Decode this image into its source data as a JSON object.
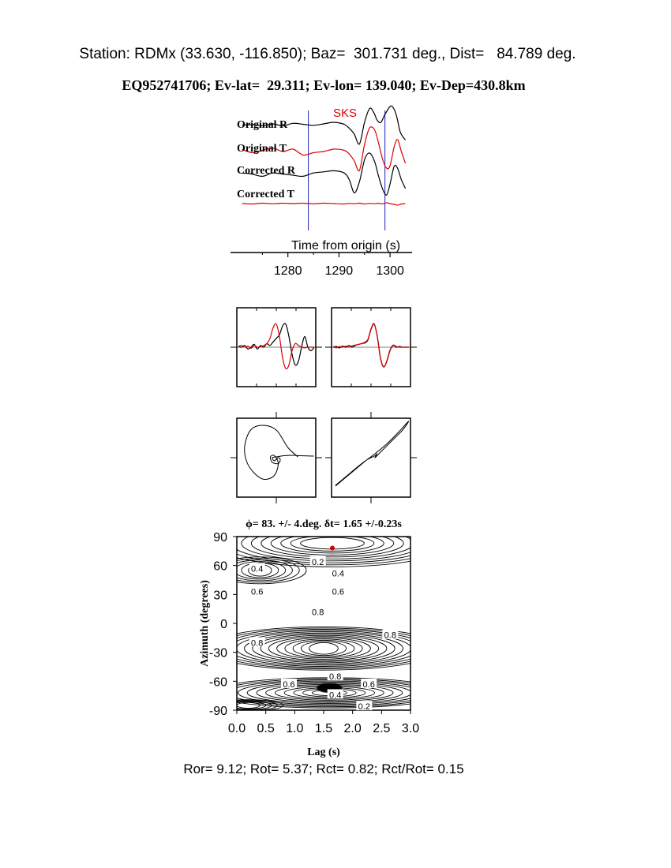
{
  "header": {
    "station_line": "Station: RDMx (33.630, -116.850); Baz=  301.731 deg., Dist=   84.789 deg.",
    "event_line": "EQ952741706; Ev-lat=  29.311; Ev-lon= 139.040; Ev-Dep=430.8km"
  },
  "footer": {
    "ratio_line": "Ror= 9.12; Rot= 5.37; Rct= 0.82; Rct/Rot= 0.15"
  },
  "colors": {
    "original": "#000000",
    "corrected": "#dd0000",
    "marker": "#2020c0",
    "phase_label": "#dd0000"
  },
  "chart_data": [
    {
      "type": "line",
      "panel": "seismograms",
      "phase_label": "SKS",
      "xlabel": "Time from origin (s)",
      "x_ticks": [
        "1280",
        "1290",
        "1300"
      ],
      "x_tick_values": [
        1280,
        1290,
        1300
      ],
      "xlim": [
        1270,
        1304
      ],
      "window_markers": [
        1284,
        1299
      ],
      "trace_labels": [
        "Original R",
        "Original T",
        "Corrected R",
        "Corrected T"
      ],
      "series": [
        {
          "name": "Original R",
          "color": "#000000",
          "t": [
            1271,
            1273,
            1275,
            1277,
            1279,
            1281,
            1283,
            1285,
            1287,
            1289,
            1291,
            1292,
            1293,
            1294,
            1295,
            1296,
            1296.8,
            1297.5,
            1298.2,
            1299,
            1300,
            1300.6,
            1301.3,
            1302,
            1303
          ],
          "v": [
            0.05,
            0.08,
            0.03,
            0.12,
            0.02,
            0.15,
            0.1,
            0.05,
            0.12,
            0.2,
            0.1,
            -0.1,
            -0.4,
            -0.9,
            0.2,
            0.9,
            0.7,
            0.3,
            0.2,
            0.6,
            1.0,
            0.95,
            0.5,
            -0.3,
            -0.7
          ]
        },
        {
          "name": "Original T",
          "color": "#dd0000",
          "t": [
            1271,
            1273,
            1275,
            1277,
            1279,
            1281,
            1283,
            1285,
            1287,
            1289,
            1291,
            1292,
            1293,
            1294,
            1295,
            1296,
            1297,
            1297.7,
            1298.5,
            1299.3,
            1300,
            1300.8,
            1301.5,
            1302.2,
            1303
          ],
          "v": [
            0.1,
            -0.05,
            0.05,
            0.15,
            0.0,
            0.1,
            -0.15,
            -0.05,
            0.0,
            0.1,
            0.05,
            -0.1,
            -0.4,
            -0.8,
            0.3,
            1.0,
            0.9,
            0.4,
            -0.3,
            -0.7,
            -0.6,
            0.2,
            0.5,
            0.0,
            -0.5
          ]
        },
        {
          "name": "Corrected R",
          "color": "#000000",
          "t": [
            1271,
            1273,
            1275,
            1277,
            1279,
            1281,
            1283,
            1285,
            1287,
            1289,
            1291,
            1292,
            1293,
            1294,
            1295,
            1296,
            1297,
            1297.7,
            1298.5,
            1299.3,
            1300,
            1300.8,
            1301.5,
            1302.2,
            1303
          ],
          "v": [
            0.1,
            0.05,
            -0.05,
            0.1,
            0.05,
            0.0,
            -0.05,
            0.1,
            0.15,
            0.2,
            0.1,
            -0.2,
            -0.8,
            -0.3,
            0.7,
            1.0,
            0.6,
            0.0,
            -0.6,
            -0.9,
            -0.4,
            0.4,
            0.3,
            -0.2,
            -0.6
          ]
        },
        {
          "name": "Corrected T",
          "color": "#dd0000",
          "t": [
            1271,
            1273,
            1275,
            1277,
            1279,
            1281,
            1283,
            1285,
            1287,
            1289,
            1291,
            1292,
            1293,
            1294,
            1295,
            1296,
            1297,
            1297.7,
            1298.5,
            1299.3,
            1300,
            1300.8,
            1301.5,
            1302.2,
            1303
          ],
          "v": [
            0.02,
            -0.05,
            0.05,
            -0.02,
            0.05,
            0.0,
            0.05,
            -0.03,
            0.05,
            0.0,
            -0.05,
            0.03,
            -0.02,
            0.05,
            -0.05,
            0.03,
            -0.02,
            0.05,
            -0.03,
            0.1,
            0.0,
            -0.1,
            -0.2,
            -0.05,
            0.0
          ]
        }
      ]
    },
    {
      "type": "line",
      "panel": "waveform-comparison-original",
      "series": [
        {
          "name": "",
          "color": "#000000",
          "v": [
            0.02,
            0.0,
            0.05,
            -0.05,
            0.0,
            0.08,
            -0.05,
            0.05,
            0.0,
            0.1,
            0.05,
            0.15,
            0.25,
            0.35,
            0.6,
            0.65,
            0.3,
            -0.2,
            -0.5,
            -0.4,
            0.0,
            0.3,
            0.0,
            -0.1,
            0.0
          ]
        },
        {
          "name": "",
          "color": "#dd0000",
          "v": [
            0.02,
            0.05,
            0.0,
            0.03,
            -0.03,
            0.05,
            0.0,
            0.02,
            0.05,
            0.1,
            0.25,
            0.55,
            0.65,
            0.3,
            -0.3,
            -0.6,
            -0.5,
            -0.1,
            0.1,
            0.05,
            0.0,
            -0.02,
            0.0,
            0.0,
            0.0
          ]
        }
      ]
    },
    {
      "type": "line",
      "panel": "waveform-comparison-corrected",
      "series": [
        {
          "name": "",
          "color": "#000000",
          "v": [
            0.0,
            0.02,
            -0.02,
            0.03,
            0.0,
            0.05,
            0.0,
            0.05,
            0.08,
            0.1,
            0.12,
            0.2,
            0.5,
            0.65,
            0.3,
            -0.3,
            -0.55,
            -0.4,
            -0.1,
            0.05,
            0.0,
            0.02,
            0.0,
            0.0,
            0.0
          ]
        },
        {
          "name": "",
          "color": "#dd0000",
          "v": [
            0.02,
            -0.02,
            0.02,
            0.0,
            0.03,
            0.0,
            0.04,
            0.06,
            0.08,
            0.1,
            0.14,
            0.22,
            0.52,
            0.66,
            0.28,
            -0.32,
            -0.56,
            -0.38,
            -0.08,
            0.06,
            0.02,
            0.0,
            0.0,
            0.0,
            0.0
          ]
        }
      ]
    },
    {
      "type": "scatter",
      "panel": "particle-motion-original",
      "series": [
        {
          "name": "",
          "color": "#000000",
          "x": [
            0.55,
            0.3,
            0.0,
            -0.35,
            -0.65,
            -0.8,
            -0.75,
            -0.55,
            -0.3,
            -0.05,
            0.05,
            -0.05,
            -0.15,
            -0.1,
            0.05,
            0.1,
            0.05,
            -0.05,
            -0.1,
            0.0,
            0.2,
            0.45,
            0.6,
            0.95
          ],
          "y": [
            0.02,
            0.25,
            0.7,
            0.82,
            0.7,
            0.3,
            -0.1,
            -0.4,
            -0.55,
            -0.45,
            -0.15,
            0.05,
            0.02,
            -0.12,
            -0.15,
            -0.05,
            0.0,
            -0.08,
            0.0,
            0.02,
            0.05,
            0.06,
            0.05,
            0.04
          ]
        }
      ]
    },
    {
      "type": "scatter",
      "panel": "particle-motion-corrected",
      "series": [
        {
          "name": "",
          "color": "#000000",
          "x": [
            -0.9,
            -0.6,
            -0.3,
            -0.1,
            0.1,
            0.15,
            0.1,
            0.2,
            0.4,
            0.6,
            0.8,
            0.95,
            0.7,
            0.4,
            0.1,
            -0.1,
            -0.4,
            -0.7,
            -0.9
          ],
          "y": [
            -0.7,
            -0.45,
            -0.2,
            -0.05,
            0.05,
            0.1,
            0.0,
            0.1,
            0.3,
            0.5,
            0.7,
            0.92,
            0.65,
            0.35,
            0.1,
            -0.05,
            -0.3,
            -0.55,
            -0.72
          ]
        }
      ]
    },
    {
      "type": "heatmap",
      "panel": "error-surface",
      "title": "ϕ= 83. +/- 4.deg. δt= 1.65 +/-0.23s",
      "xlabel": "Lag (s)",
      "ylabel": "Azimuth (degrees)",
      "xlim": [
        0.0,
        3.0
      ],
      "ylim": [
        -90,
        90
      ],
      "x_ticks": [
        "0.0",
        "0.5",
        "1.0",
        "1.5",
        "2.0",
        "2.5",
        "3.0"
      ],
      "y_ticks": [
        "90",
        "60",
        "30",
        "0",
        "-30",
        "-60",
        "-90"
      ],
      "best_fit": {
        "lag": 1.65,
        "azimuth": 83
      },
      "contour_labels": [
        "0.4",
        "0.2",
        "0.4",
        "0.6",
        "0.6",
        "0.8",
        "0.8",
        "0.8",
        "0.6",
        "0.8",
        "0.6",
        "0.4",
        "0.2"
      ]
    }
  ]
}
